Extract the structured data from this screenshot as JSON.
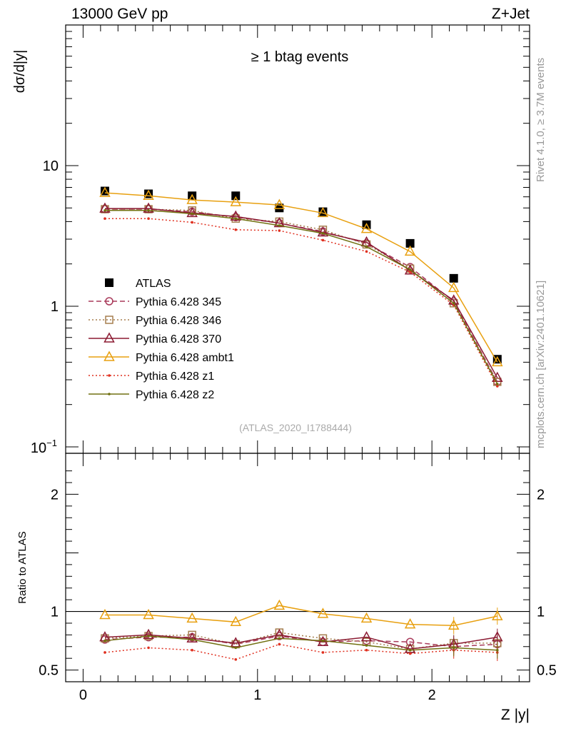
{
  "header": {
    "left": "13000 GeV pp",
    "right": "Z+Jet",
    "subtitle": "≥ 1 btag events",
    "side_text_top": "Rivet 4.1.0, ≥ 3.7M events",
    "side_text_bottom": "mcplots.cern.ch [arXiv:2401.10621]",
    "watermark": "(ATLAS_2020_I1788444)"
  },
  "chart_data": [
    {
      "type": "scatter",
      "title": "≥ 1 btag events",
      "xlabel": "Z |y|",
      "ylabel": "dσ/d|y|",
      "yscale": "log",
      "xlim": [
        -0.1,
        2.56
      ],
      "ylim": [
        0.09,
        100
      ],
      "xticks": [
        {
          "v": 0,
          "label": "0"
        },
        {
          "v": 1,
          "label": "1"
        },
        {
          "v": 2,
          "label": "2"
        }
      ],
      "ytick_labels": [
        {
          "v": 0.1,
          "base": "10",
          "exp": "−1"
        },
        {
          "v": 1,
          "label": "1"
        },
        {
          "v": 10,
          "label": "10"
        }
      ],
      "x": [
        0.125,
        0.375,
        0.625,
        0.875,
        1.125,
        1.375,
        1.625,
        1.875,
        2.125,
        2.375
      ],
      "series": [
        {
          "name": "ATLAS",
          "marker": "square",
          "color": "#000000",
          "dash": "",
          "values": [
            6.6,
            6.3,
            6.1,
            6.1,
            5.0,
            4.7,
            3.8,
            2.8,
            1.58,
            0.42
          ]
        },
        {
          "name": "Pythia 6.428 345",
          "marker": "circle",
          "color": "#a93a5a",
          "dash": "7,4",
          "values": [
            4.9,
            4.9,
            4.7,
            4.3,
            3.9,
            3.4,
            2.8,
            1.9,
            1.08,
            0.29
          ]
        },
        {
          "name": "Pythia 6.428 346",
          "marker": "square-open",
          "color": "#a57e4e",
          "dash": "2,3",
          "values": [
            4.9,
            4.9,
            4.8,
            4.2,
            4.0,
            3.5,
            2.75,
            1.85,
            1.05,
            0.29
          ]
        },
        {
          "name": "Pythia 6.428 370",
          "marker": "triangle",
          "color": "#8b1a32",
          "dash": "",
          "values": [
            4.95,
            4.95,
            4.6,
            4.35,
            3.9,
            3.35,
            2.85,
            1.8,
            1.1,
            0.31
          ]
        },
        {
          "name": "Pythia 6.428 ambt1",
          "marker": "triangle",
          "color": "#e8a010",
          "dash": "",
          "values": [
            6.4,
            6.1,
            5.7,
            5.5,
            5.25,
            4.6,
            3.55,
            2.45,
            1.35,
            0.4
          ]
        },
        {
          "name": "Pythia 6.428 z1",
          "marker": "dot",
          "color": "#e03020",
          "dash": "2,3",
          "values": [
            4.2,
            4.2,
            3.95,
            3.5,
            3.45,
            2.95,
            2.45,
            1.75,
            1.02,
            0.27
          ]
        },
        {
          "name": "Pythia 6.428 z2",
          "marker": "dot",
          "color": "#707010",
          "dash": "",
          "values": [
            4.8,
            4.8,
            4.55,
            4.2,
            3.75,
            3.3,
            2.65,
            1.82,
            1.05,
            0.28
          ]
        }
      ]
    },
    {
      "type": "scatter",
      "xlabel": "Z |y|",
      "ylabel": "Ratio to ATLAS",
      "xlim": [
        -0.1,
        2.56
      ],
      "ylim": [
        0.4,
        2.35
      ],
      "yticks": [
        0.5,
        1,
        2
      ],
      "ytick_labels": [
        "0.5",
        "1",
        "2"
      ],
      "x": [
        0.125,
        0.375,
        0.625,
        0.875,
        1.125,
        1.375,
        1.625,
        1.875,
        2.125,
        2.375
      ],
      "series": [
        {
          "name": "Pythia 6.428 345",
          "values": [
            0.76,
            0.78,
            0.78,
            0.72,
            0.79,
            0.74,
            0.75,
            0.74,
            0.7,
            0.72
          ]
        },
        {
          "name": "Pythia 6.428 346",
          "values": [
            0.77,
            0.79,
            0.8,
            0.72,
            0.82,
            0.77,
            0.74,
            0.68,
            0.73,
            0.73
          ]
        },
        {
          "name": "Pythia 6.428 370",
          "values": [
            0.78,
            0.8,
            0.77,
            0.73,
            0.8,
            0.74,
            0.78,
            0.68,
            0.72,
            0.78
          ]
        },
        {
          "name": "Pythia 6.428 ambt1",
          "values": [
            0.97,
            0.97,
            0.94,
            0.91,
            1.05,
            0.98,
            0.94,
            0.89,
            0.88,
            0.96
          ]
        },
        {
          "name": "Pythia 6.428 z1",
          "values": [
            0.65,
            0.69,
            0.67,
            0.59,
            0.72,
            0.65,
            0.67,
            0.64,
            0.67,
            0.65
          ]
        },
        {
          "name": "Pythia 6.428 z2",
          "values": [
            0.75,
            0.79,
            0.76,
            0.69,
            0.77,
            0.75,
            0.71,
            0.67,
            0.69,
            0.67
          ]
        }
      ]
    }
  ]
}
